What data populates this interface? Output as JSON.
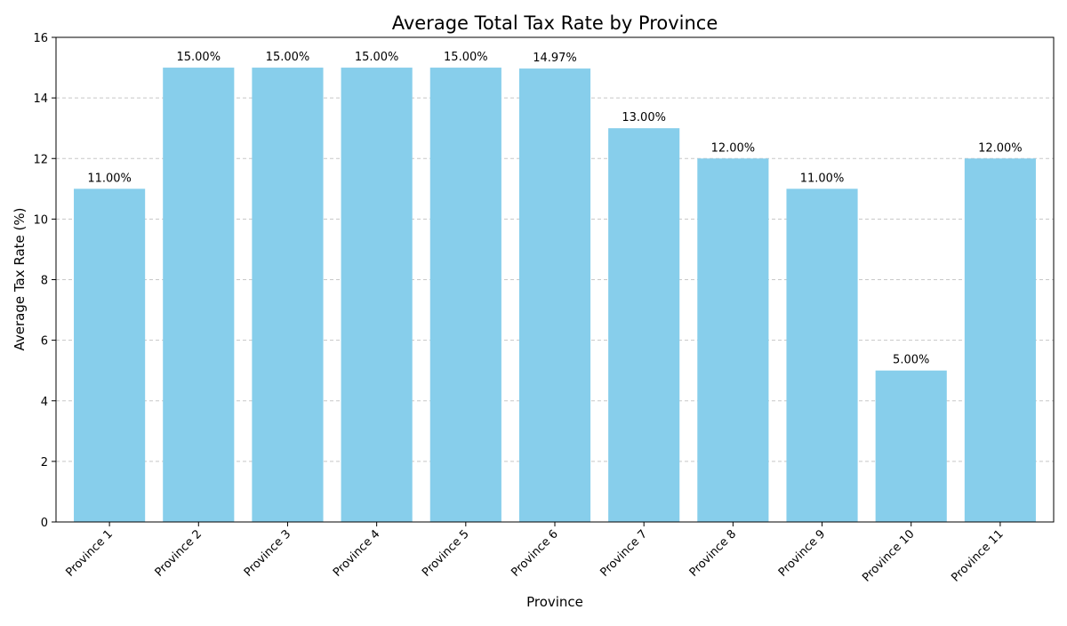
{
  "chart_data": {
    "type": "bar",
    "title": "Average Total Tax Rate by Province",
    "xlabel": "Province",
    "ylabel": "Average Tax Rate (%)",
    "ylim": [
      0,
      16
    ],
    "yticks": [
      0,
      2,
      4,
      6,
      8,
      10,
      12,
      14,
      16
    ],
    "grid": {
      "y": true,
      "x": false,
      "style": "dashed"
    },
    "bar_color": "#87CEEB",
    "categories": [
      "Province 1",
      "Province 2",
      "Province 3",
      "Province 4",
      "Province 5",
      "Province 6",
      "Province 7",
      "Province 8",
      "Province 9",
      "Province 10",
      "Province 11"
    ],
    "values": [
      11.0,
      15.0,
      15.0,
      15.0,
      15.0,
      14.97,
      13.0,
      12.0,
      11.0,
      5.0,
      12.0
    ],
    "data_labels": [
      "11.00%",
      "15.00%",
      "15.00%",
      "15.00%",
      "15.00%",
      "14.97%",
      "13.00%",
      "12.00%",
      "11.00%",
      "5.00%",
      "12.00%"
    ]
  }
}
